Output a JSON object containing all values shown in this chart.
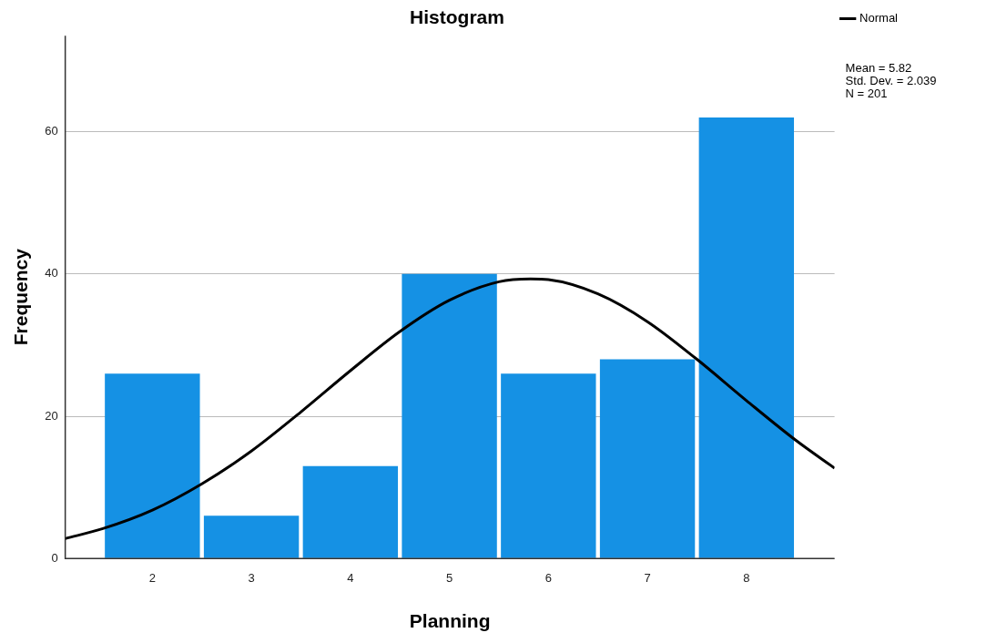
{
  "chart_data": {
    "type": "histogram",
    "title": "Histogram",
    "xlabel": "Planning",
    "ylabel": "Frequency",
    "bins": [
      1.5,
      2.5,
      3.5,
      4.5,
      5.5,
      6.5,
      7.5,
      8.5
    ],
    "values": [
      26,
      6,
      13,
      40,
      26,
      28,
      62
    ],
    "color": "#1591e4",
    "series": [
      {
        "name": "Normal",
        "type": "line",
        "color": "#000000",
        "x": [
          1.12,
          1.5,
          2,
          2.5,
          3,
          3.5,
          4,
          4.5,
          5,
          5.5,
          5.82,
          6,
          6.5,
          7,
          7.5,
          8,
          8.5,
          8.89
        ],
        "values": [
          2.8,
          4.2,
          6.8,
          10.5,
          15.1,
          20.6,
          26.4,
          31.9,
          36.3,
          38.9,
          39.3,
          39.2,
          37.2,
          33.3,
          28.0,
          22.2,
          16.6,
          12.7
        ]
      }
    ],
    "xlim": [
      1.12,
      8.89
    ],
    "xticks": [
      2,
      3,
      4,
      5,
      6,
      7,
      8
    ],
    "ylim": [
      0,
      73.5
    ],
    "yticks": [
      0,
      20,
      40,
      60
    ],
    "grid": "y",
    "legend": "top right",
    "annotations": [
      "Mean = 5.82",
      "Std. Dev. = 2.039",
      "N = 201"
    ]
  }
}
